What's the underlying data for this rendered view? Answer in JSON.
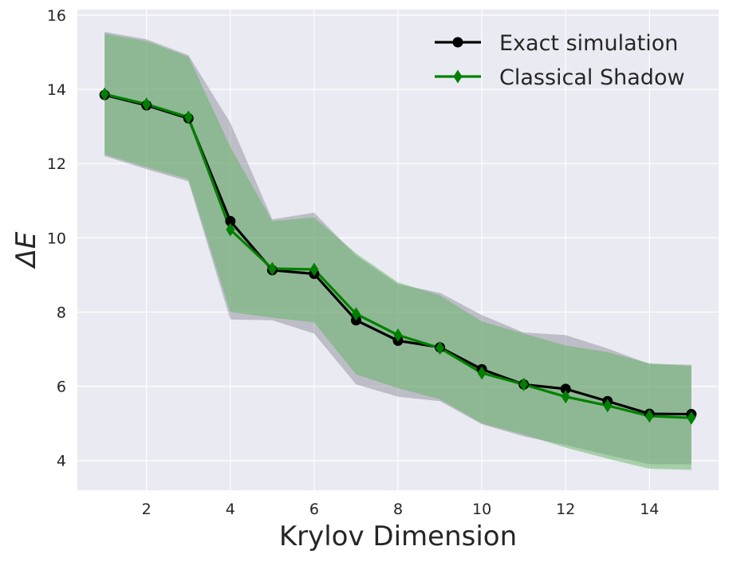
{
  "chart_data": {
    "type": "line",
    "title": "",
    "xlabel": "Krylov Dimension",
    "ylabel": "ΔE",
    "xlim": [
      0.35,
      15.65
    ],
    "ylim": [
      3.2,
      16.15
    ],
    "xticks": [
      2,
      4,
      6,
      8,
      10,
      12,
      14
    ],
    "yticks": [
      4,
      6,
      8,
      10,
      12,
      14,
      16
    ],
    "grid": true,
    "legend_position": "top-right",
    "x": [
      1,
      2,
      3,
      4,
      5,
      6,
      7,
      8,
      9,
      10,
      11,
      12,
      13,
      14,
      15
    ],
    "series": [
      {
        "name": "Exact simulation",
        "color": "#000000",
        "marker": "circle",
        "band_color": "#7f7f8c",
        "values": [
          13.85,
          13.57,
          13.22,
          10.45,
          9.13,
          9.03,
          7.78,
          7.23,
          7.05,
          6.46,
          6.05,
          5.93,
          5.6,
          5.26,
          5.25
        ],
        "lower": [
          12.2,
          11.85,
          11.52,
          7.8,
          7.78,
          7.42,
          6.05,
          5.72,
          5.6,
          4.98,
          4.65,
          4.42,
          4.15,
          3.9,
          3.9
        ],
        "upper": [
          15.55,
          15.35,
          14.92,
          13.1,
          10.5,
          10.68,
          9.52,
          8.75,
          8.52,
          7.92,
          7.45,
          7.38,
          7.02,
          6.6,
          6.58
        ]
      },
      {
        "name": "Classical Shadow",
        "color": "#008000",
        "marker": "diamond",
        "band_color": "#5fb35f",
        "values": [
          13.87,
          13.6,
          13.25,
          10.22,
          9.17,
          9.15,
          7.95,
          7.38,
          7.03,
          6.36,
          6.05,
          5.72,
          5.48,
          5.2,
          5.15
        ],
        "lower": [
          12.25,
          11.9,
          11.58,
          8.0,
          7.85,
          7.72,
          6.32,
          5.95,
          5.65,
          5.0,
          4.7,
          4.35,
          4.05,
          3.78,
          3.75
        ],
        "upper": [
          15.5,
          15.3,
          14.88,
          12.45,
          10.45,
          10.55,
          9.58,
          8.8,
          8.45,
          7.75,
          7.42,
          7.1,
          6.92,
          6.62,
          6.55
        ]
      }
    ]
  }
}
